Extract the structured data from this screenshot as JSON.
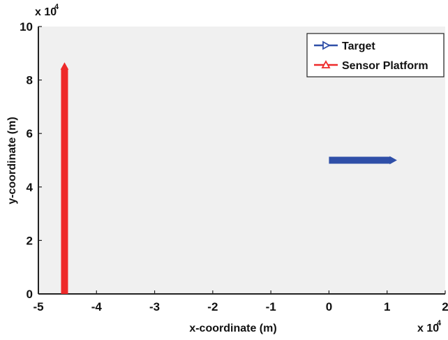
{
  "chart_data": {
    "type": "line",
    "xlabel": "x-coordinate (m)",
    "ylabel": "y-coordinate (m)",
    "x_multiplier_label": "x 10",
    "y_multiplier_label": "x 10",
    "multiplier_exponent": "4",
    "xlim": [
      -5,
      2
    ],
    "ylim": [
      0,
      10
    ],
    "x_ticks": [
      "-5",
      "-4",
      "-3",
      "-2",
      "-1",
      "0",
      "1",
      "2"
    ],
    "y_ticks": [
      "0",
      "2",
      "4",
      "6",
      "8",
      "10"
    ],
    "legend_position": "top-right",
    "series": [
      {
        "name": "Target",
        "color": "#2f4fa8",
        "marker": "triangle-right",
        "x": [
          0.0,
          1.05
        ],
        "y": [
          5.0,
          5.0
        ]
      },
      {
        "name": "Sensor Platform",
        "color": "#ee2a2a",
        "marker": "triangle-up",
        "x": [
          -4.55,
          -4.55
        ],
        "y": [
          0.0,
          8.4
        ]
      }
    ]
  }
}
